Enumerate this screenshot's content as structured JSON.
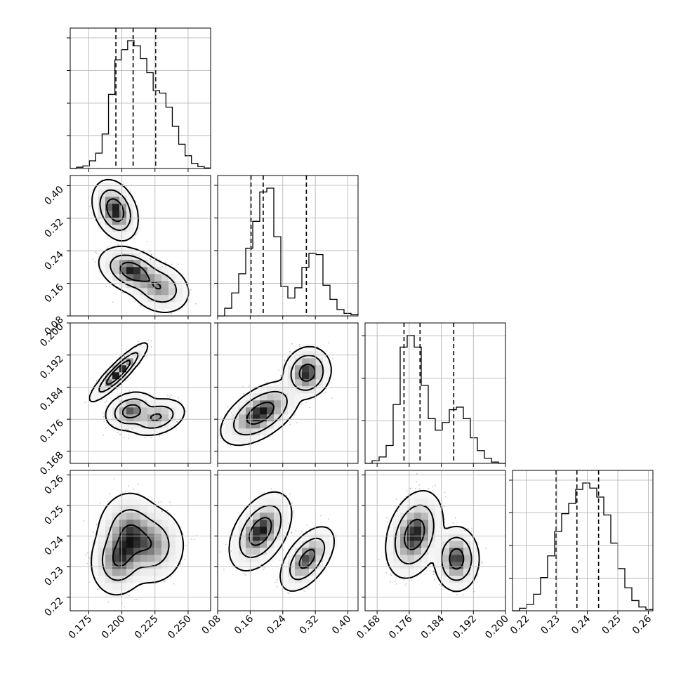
{
  "chart_data": {
    "type": "corner",
    "description_labels": [],
    "parameters": [
      {
        "index": 0,
        "range": [
          0.161,
          0.267
        ],
        "ticks": [
          "0.175",
          "0.200",
          "0.225",
          "0.250"
        ],
        "tick_values": [
          0.175,
          0.2,
          0.225,
          0.25
        ],
        "quantiles": [
          0.1955,
          0.2085,
          0.2255
        ]
      },
      {
        "index": 1,
        "range": [
          0.08,
          0.425
        ],
        "ticks": [
          "0.08",
          "0.16",
          "0.24",
          "0.32",
          "0.40"
        ],
        "tick_values": [
          0.08,
          0.16,
          0.24,
          0.32,
          0.4
        ],
        "quantiles": [
          0.162,
          0.192,
          0.298
        ]
      },
      {
        "index": 2,
        "range": [
          0.165,
          0.2
        ],
        "ticks": [
          "0.168",
          "0.176",
          "0.184",
          "0.192",
          "0.200"
        ],
        "tick_values": [
          0.168,
          0.176,
          0.184,
          0.192,
          0.2
        ],
        "quantiles": [
          0.1747,
          0.1787,
          0.1871
        ]
      },
      {
        "index": 3,
        "range": [
          0.2155,
          0.2615
        ],
        "ticks": [
          "0.22",
          "0.23",
          "0.24",
          "0.25",
          "0.26"
        ],
        "tick_values": [
          0.22,
          0.23,
          0.24,
          0.25,
          0.26
        ],
        "quantiles": [
          0.2298,
          0.2366,
          0.2437
        ]
      }
    ],
    "histograms": [
      {
        "param": 0,
        "bins_from": 0.161,
        "bins_to": 0.267,
        "counts": [
          0,
          0.01,
          0.02,
          0.06,
          0.12,
          0.27,
          0.58,
          0.85,
          0.93,
          1.0,
          0.96,
          0.86,
          0.75,
          0.61,
          0.59,
          0.48,
          0.33,
          0.19,
          0.1,
          0.04,
          0.015,
          0.004
        ]
      },
      {
        "param": 1,
        "bins_from": 0.08,
        "bins_to": 0.425,
        "counts": [
          0,
          0.06,
          0.18,
          0.33,
          0.53,
          0.74,
          0.97,
          1.0,
          0.62,
          0.23,
          0.14,
          0.22,
          0.38,
          0.49,
          0.48,
          0.24,
          0.13,
          0.05,
          0.02,
          0.01
        ]
      },
      {
        "param": 2,
        "bins_from": 0.165,
        "bins_to": 0.2,
        "counts": [
          0,
          0.02,
          0.05,
          0.14,
          0.46,
          0.91,
          1.0,
          0.91,
          0.61,
          0.35,
          0.26,
          0.32,
          0.42,
          0.44,
          0.35,
          0.2,
          0.1,
          0.04,
          0.01,
          0
        ]
      },
      {
        "param": 3,
        "bins_from": 0.2155,
        "bins_to": 0.2615,
        "counts": [
          0,
          0.02,
          0.05,
          0.13,
          0.26,
          0.43,
          0.62,
          0.76,
          0.84,
          0.95,
          1.0,
          0.96,
          0.89,
          0.75,
          0.53,
          0.33,
          0.18,
          0.08,
          0.03,
          0.01
        ]
      }
    ],
    "pairs": [
      {
        "x": 0,
        "y": 1,
        "modes": [
          {
            "cx": 0.195,
            "cy": 0.34,
            "sx": 0.0058,
            "sy": 0.025,
            "rho": -0.3,
            "w": 0.36
          },
          {
            "cx": 0.208,
            "cy": 0.19,
            "sx": 0.0085,
            "sy": 0.02,
            "rho": -0.35,
            "w": 0.4
          },
          {
            "cx": 0.228,
            "cy": 0.15,
            "sx": 0.008,
            "sy": 0.022,
            "rho": -0.2,
            "w": 0.24
          }
        ]
      },
      {
        "x": 0,
        "y": 2,
        "modes": [
          {
            "cx": 0.1975,
            "cy": 0.1877,
            "sx": 0.0072,
            "sy": 0.0024,
            "rho": 0.9,
            "w": 0.36
          },
          {
            "cx": 0.207,
            "cy": 0.178,
            "sx": 0.0065,
            "sy": 0.0016,
            "rho": 0.2,
            "w": 0.36
          },
          {
            "cx": 0.226,
            "cy": 0.1765,
            "sx": 0.0075,
            "sy": 0.0016,
            "rho": 0.3,
            "w": 0.28
          }
        ]
      },
      {
        "x": 1,
        "y": 2,
        "modes": [
          {
            "cx": 0.185,
            "cy": 0.1775,
            "sx": 0.033,
            "sy": 0.0027,
            "rho": 0.55,
            "w": 0.64
          },
          {
            "cx": 0.3,
            "cy": 0.1876,
            "sx": 0.02,
            "sy": 0.0022,
            "rho": 0.1,
            "w": 0.36
          }
        ]
      },
      {
        "x": 0,
        "y": 3,
        "modes": [
          {
            "cx": 0.206,
            "cy": 0.2405,
            "sx": 0.0085,
            "sy": 0.0048,
            "rho": 0.0,
            "w": 0.4
          },
          {
            "cx": 0.198,
            "cy": 0.2325,
            "sx": 0.0075,
            "sy": 0.0042,
            "rho": 0.1,
            "w": 0.3
          },
          {
            "cx": 0.222,
            "cy": 0.237,
            "sx": 0.009,
            "sy": 0.0045,
            "rho": 0.0,
            "w": 0.3
          }
        ]
      },
      {
        "x": 1,
        "y": 3,
        "modes": [
          {
            "cx": 0.185,
            "cy": 0.2415,
            "sx": 0.025,
            "sy": 0.0042,
            "rho": 0.45,
            "w": 0.64
          },
          {
            "cx": 0.3,
            "cy": 0.2325,
            "sx": 0.022,
            "sy": 0.0035,
            "rho": 0.55,
            "w": 0.36
          }
        ]
      },
      {
        "x": 2,
        "y": 3,
        "modes": [
          {
            "cx": 0.1773,
            "cy": 0.2405,
            "sx": 0.0024,
            "sy": 0.0048,
            "rho": 0.3,
            "w": 0.64
          },
          {
            "cx": 0.1878,
            "cy": 0.2325,
            "sx": 0.0019,
            "sy": 0.0036,
            "rho": 0.0,
            "w": 0.36
          }
        ]
      }
    ],
    "contour_levels": [
      0.39,
      0.86,
      0.99
    ],
    "histogram_quantiles": [
      0.16,
      0.5,
      0.84
    ],
    "grid": true
  }
}
